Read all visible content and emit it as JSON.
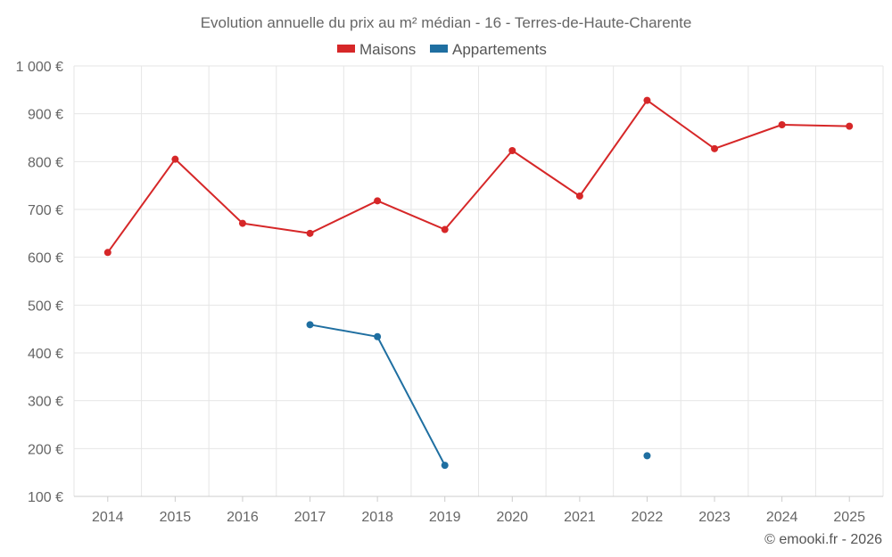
{
  "chart_data": {
    "type": "line",
    "title": "Evolution annuelle du prix au m² médian - 16 - Terres-de-Haute-Charente",
    "categories": [
      "2014",
      "2015",
      "2016",
      "2017",
      "2018",
      "2019",
      "2020",
      "2021",
      "2022",
      "2023",
      "2024",
      "2025"
    ],
    "series": [
      {
        "name": "Maisons",
        "color": "#d62728",
        "values": [
          610,
          805,
          671,
          650,
          718,
          658,
          823,
          728,
          928,
          827,
          877,
          874
        ]
      },
      {
        "name": "Appartements",
        "color": "#1f6fa1",
        "values": [
          null,
          null,
          null,
          459,
          434,
          165,
          null,
          null,
          185,
          null,
          null,
          null
        ]
      }
    ],
    "y_ticks": [
      "1 000 €",
      "900 €",
      "800 €",
      "700 €",
      "600 €",
      "500 €",
      "400 €",
      "300 €",
      "200 €",
      "100 €"
    ],
    "y_tick_values": [
      1000,
      900,
      800,
      700,
      600,
      500,
      400,
      300,
      200,
      100
    ],
    "ylim": [
      100,
      1000
    ],
    "xlabel": "",
    "ylabel": "",
    "grid": true,
    "legend_position": "top-center",
    "credit": "© emooki.fr - 2026"
  }
}
